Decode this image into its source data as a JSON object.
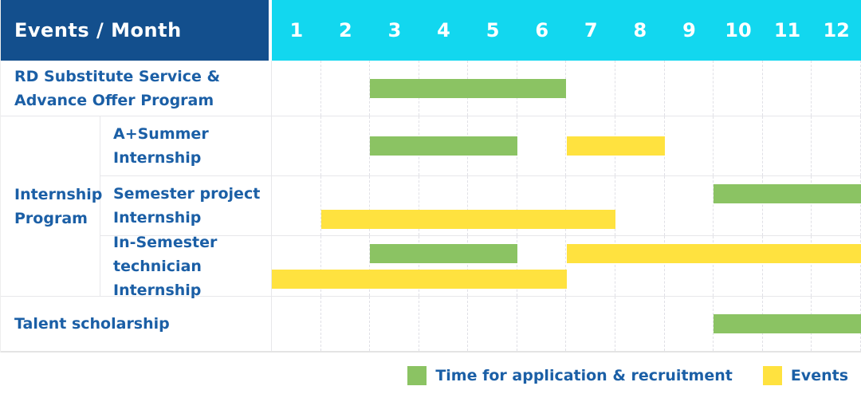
{
  "header": {
    "title": "Events / Month",
    "months": [
      "1",
      "2",
      "3",
      "4",
      "5",
      "6",
      "7",
      "8",
      "9",
      "10",
      "11",
      "12"
    ]
  },
  "colors": {
    "header_bg": "#134f8d",
    "months_bg": "#12d7ef",
    "green": "#8bc363",
    "yellow": "#ffe23f",
    "label_text": "#1b5fa6"
  },
  "rows": [
    {
      "type": "simple",
      "label_lines": [
        "RD Substitute Service &",
        "Advance Offer Program"
      ],
      "bars": [
        {
          "color": "green",
          "start": 3,
          "end": 6,
          "lane": "center"
        }
      ]
    },
    {
      "type": "group",
      "label_lines": [
        "Internship",
        "Program"
      ],
      "children": [
        {
          "label_lines": [
            "A+Summer",
            "Internship"
          ],
          "bars": [
            {
              "color": "green",
              "start": 3,
              "end": 5,
              "lane": "center"
            },
            {
              "color": "yellow",
              "start": 7,
              "end": 8,
              "lane": "center"
            }
          ]
        },
        {
          "label_lines": [
            "Semester project",
            "Internship"
          ],
          "bars": [
            {
              "color": "green",
              "start": 10,
              "end": 12,
              "lane": "top"
            },
            {
              "color": "yellow",
              "start": 2,
              "end": 7,
              "lane": "bottom"
            }
          ]
        },
        {
          "label_lines": [
            "In-Semester",
            "technician Internship"
          ],
          "bars": [
            {
              "color": "green",
              "start": 3,
              "end": 5,
              "lane": "top"
            },
            {
              "color": "yellow",
              "start": 7,
              "end": 12,
              "lane": "top"
            },
            {
              "color": "yellow",
              "start": 1,
              "end": 6,
              "lane": "bottom"
            }
          ]
        }
      ]
    },
    {
      "type": "simple",
      "label_lines": [
        "Talent scholarship"
      ],
      "bars": [
        {
          "color": "green",
          "start": 10,
          "end": 12,
          "lane": "center"
        }
      ]
    }
  ],
  "legend": [
    {
      "color": "green",
      "label": "Time for application & recruitment"
    },
    {
      "color": "yellow",
      "label": "Events"
    }
  ],
  "chart_data": {
    "type": "table",
    "title": "Events / Month",
    "x_axis": {
      "label": "Month",
      "ticks": [
        1,
        2,
        3,
        4,
        5,
        6,
        7,
        8,
        9,
        10,
        11,
        12
      ]
    },
    "legend": [
      {
        "series": "Time for application & recruitment",
        "color": "#8bc363"
      },
      {
        "series": "Events",
        "color": "#ffe23f"
      }
    ],
    "rows": [
      {
        "event": "RD Substitute Service & Advance Offer Program",
        "group": null,
        "application_recruitment_month_ranges": [
          [
            3,
            6
          ]
        ],
        "event_month_ranges": []
      },
      {
        "event": "A+Summer Internship",
        "group": "Internship Program",
        "application_recruitment_month_ranges": [
          [
            3,
            5
          ]
        ],
        "event_month_ranges": [
          [
            7,
            8
          ]
        ]
      },
      {
        "event": "Semester project Internship",
        "group": "Internship Program",
        "application_recruitment_month_ranges": [
          [
            10,
            12
          ]
        ],
        "event_month_ranges": [
          [
            2,
            7
          ]
        ]
      },
      {
        "event": "In-Semester technician Internship",
        "group": "Internship Program",
        "application_recruitment_month_ranges": [
          [
            3,
            5
          ]
        ],
        "event_month_ranges": [
          [
            7,
            12
          ],
          [
            1,
            6
          ]
        ]
      },
      {
        "event": "Talent scholarship",
        "group": null,
        "application_recruitment_month_ranges": [
          [
            10,
            12
          ]
        ],
        "event_month_ranges": []
      }
    ]
  }
}
